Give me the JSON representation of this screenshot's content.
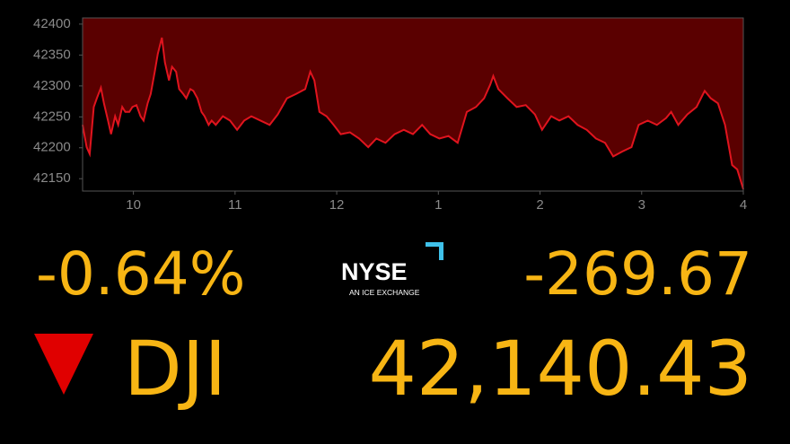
{
  "chart_data": {
    "type": "area",
    "x": [
      9.5,
      9.54,
      9.57,
      9.61,
      9.64,
      9.68,
      9.71,
      9.75,
      9.78,
      9.82,
      9.85,
      9.89,
      9.92,
      9.96,
      9.99,
      10.03,
      10.07,
      10.1,
      10.14,
      10.17,
      10.21,
      10.24,
      10.28,
      10.31,
      10.35,
      10.38,
      10.42,
      10.45,
      10.49,
      10.52,
      10.56,
      10.59,
      10.63,
      10.67,
      10.7,
      10.74,
      10.77,
      10.81,
      10.88,
      10.95,
      11.02,
      11.09,
      11.16,
      11.25,
      11.34,
      11.42,
      11.51,
      11.6,
      11.69,
      11.74,
      11.78,
      11.83,
      11.9,
      11.97,
      12.04,
      12.13,
      12.22,
      12.31,
      12.39,
      12.48,
      12.57,
      12.66,
      12.75,
      12.84,
      12.92,
      13.01,
      13.1,
      13.19,
      13.28,
      13.37,
      13.45,
      13.51,
      13.54,
      13.59,
      13.68,
      13.77,
      13.86,
      13.95,
      14.02,
      14.11,
      14.19,
      14.28,
      14.37,
      14.46,
      14.55,
      14.64,
      14.72,
      14.81,
      14.9,
      14.97,
      15.06,
      15.15,
      15.24,
      15.29,
      15.36,
      15.45,
      15.54,
      15.62,
      15.68,
      15.75,
      15.82,
      15.89,
      15.94,
      16.0
    ],
    "series": [
      {
        "color": "#e0141e",
        "values": [
          42237,
          42201,
          42190,
          42266,
          42280,
          42297,
          42272,
          42244,
          42222,
          42251,
          42237,
          42266,
          42258,
          42258,
          42266,
          42269,
          42251,
          42244,
          42272,
          42287,
          42323,
          42352,
          42378,
          42338,
          42309,
          42331,
          42323,
          42295,
          42287,
          42280,
          42295,
          42292,
          42280,
          42258,
          42251,
          42237,
          42244,
          42237,
          42251,
          42244,
          42229,
          42244,
          42251,
          42244,
          42237,
          42254,
          42280,
          42287,
          42295,
          42323,
          42309,
          42258,
          42251,
          42237,
          42222,
          42225,
          42215,
          42201,
          42215,
          42208,
          42222,
          42229,
          42222,
          42237,
          42222,
          42215,
          42219,
          42208,
          42258,
          42266,
          42280,
          42302,
          42316,
          42295,
          42280,
          42266,
          42269,
          42254,
          42229,
          42251,
          42244,
          42251,
          42237,
          42229,
          42215,
          42208,
          42186,
          42194,
          42201,
          42237,
          42244,
          42237,
          42248,
          42258,
          42237,
          42254,
          42266,
          42292,
          42280,
          42272,
          42237,
          42172,
          42165,
          42133
        ]
      }
    ],
    "fill_color": "#5a0000",
    "xlim": [
      9.5,
      16
    ],
    "xticks": [
      10,
      11,
      12,
      {
        "value": 13,
        "label": "1"
      },
      {
        "value": 14,
        "label": "2"
      },
      {
        "value": 15,
        "label": "3"
      },
      {
        "value": 16,
        "label": "4"
      }
    ],
    "ylim": [
      42130,
      42410
    ],
    "yticks": [
      42150,
      42200,
      42250,
      42300,
      42350,
      42400
    ]
  },
  "quote": {
    "change_percent": "-0.64%",
    "change": "-269.67",
    "symbol": "DJI",
    "price": "42,140.43"
  },
  "logo": {
    "name": "NYSE",
    "tagline": "AN ICE EXCHANGE"
  }
}
